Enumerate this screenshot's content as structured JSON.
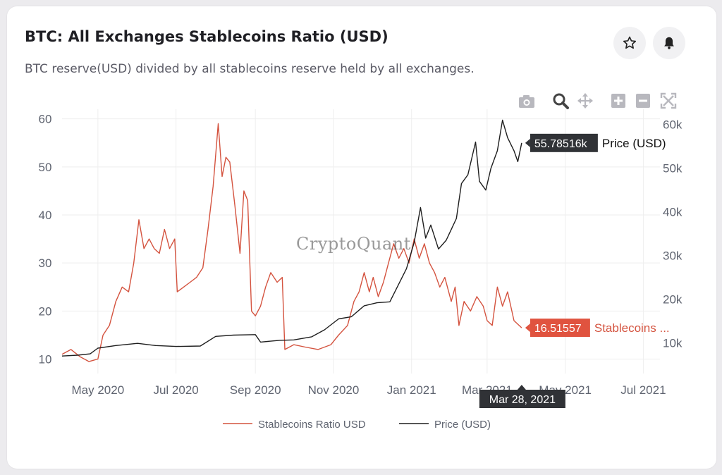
{
  "header": {
    "title": "BTC: All Exchanges Stablecoins Ratio (USD)",
    "subtitle": "BTC reserve(USD) divided by all stablecoins reserve held by all exchanges."
  },
  "actions": {
    "star_icon": "star-icon",
    "bell_icon": "bell-icon"
  },
  "toolbar": {
    "icons": [
      "camera-icon",
      "zoom-icon",
      "pan-icon",
      "zoom-in-icon",
      "zoom-out-icon",
      "autoscale-icon"
    ]
  },
  "watermark": "CryptoQuant",
  "colors": {
    "ratio": "#d4533f",
    "price": "#1e1e1e",
    "ratio_tip": "#e0533f",
    "price_tip": "#303236",
    "grid": "#eeeeee"
  },
  "chart_data": {
    "type": "line",
    "x_ticks": [
      "May 2020",
      "Jul 2020",
      "Sep 2020",
      "Nov 2020",
      "Jan 2021",
      "Mar 2021",
      "May 2021",
      "Jul 2021"
    ],
    "x_tick_dates": [
      "2020-05-01",
      "2020-07-01",
      "2020-09-01",
      "2020-11-01",
      "2021-01-01",
      "2021-03-01",
      "2021-05-01",
      "2021-07-01"
    ],
    "xlim": [
      "2020-04-03",
      "2021-07-14"
    ],
    "y_left": {
      "ticks": [
        "10",
        "20",
        "30",
        "40",
        "50",
        "60"
      ],
      "tick_values": [
        10,
        20,
        30,
        40,
        50,
        60
      ],
      "range": [
        7,
        62
      ]
    },
    "y_right": {
      "ticks": [
        "10k",
        "20k",
        "30k",
        "40k",
        "50k",
        "60k"
      ],
      "tick_values": [
        10000,
        20000,
        30000,
        40000,
        50000,
        60000
      ],
      "range": [
        3000,
        63500
      ]
    },
    "legend": [
      "Stablecoins Ratio USD",
      "Price (USD)"
    ],
    "legend_position": "bottom-center",
    "grid": true,
    "series": [
      {
        "name": "Stablecoins Ratio USD",
        "axis": "left",
        "points": [
          [
            "2020-04-03",
            11
          ],
          [
            "2020-04-10",
            12
          ],
          [
            "2020-04-17",
            10.5
          ],
          [
            "2020-04-24",
            9.5
          ],
          [
            "2020-05-01",
            10
          ],
          [
            "2020-05-05",
            15
          ],
          [
            "2020-05-10",
            17
          ],
          [
            "2020-05-15",
            22
          ],
          [
            "2020-05-20",
            25
          ],
          [
            "2020-05-25",
            24
          ],
          [
            "2020-05-29",
            30
          ],
          [
            "2020-06-02",
            39
          ],
          [
            "2020-06-06",
            33
          ],
          [
            "2020-06-10",
            35
          ],
          [
            "2020-06-14",
            33
          ],
          [
            "2020-06-18",
            32
          ],
          [
            "2020-06-22",
            37
          ],
          [
            "2020-06-26",
            33
          ],
          [
            "2020-06-30",
            35
          ],
          [
            "2020-07-02",
            24
          ],
          [
            "2020-07-07",
            25
          ],
          [
            "2020-07-12",
            26
          ],
          [
            "2020-07-17",
            27
          ],
          [
            "2020-07-22",
            29
          ],
          [
            "2020-07-26",
            37
          ],
          [
            "2020-07-30",
            46
          ],
          [
            "2020-08-03",
            59
          ],
          [
            "2020-08-06",
            48
          ],
          [
            "2020-08-09",
            52
          ],
          [
            "2020-08-12",
            51
          ],
          [
            "2020-08-16",
            42
          ],
          [
            "2020-08-20",
            32
          ],
          [
            "2020-08-23",
            45
          ],
          [
            "2020-08-26",
            43
          ],
          [
            "2020-08-29",
            20
          ],
          [
            "2020-09-01",
            19
          ],
          [
            "2020-09-05",
            21
          ],
          [
            "2020-09-09",
            25
          ],
          [
            "2020-09-13",
            28
          ],
          [
            "2020-09-18",
            26
          ],
          [
            "2020-09-22",
            27
          ],
          [
            "2020-09-24",
            12
          ],
          [
            "2020-10-01",
            13
          ],
          [
            "2020-10-10",
            12.5
          ],
          [
            "2020-10-20",
            12
          ],
          [
            "2020-10-30",
            13
          ],
          [
            "2020-11-05",
            15
          ],
          [
            "2020-11-12",
            17
          ],
          [
            "2020-11-17",
            22
          ],
          [
            "2020-11-21",
            24
          ],
          [
            "2020-11-25",
            28
          ],
          [
            "2020-11-29",
            24
          ],
          [
            "2020-12-02",
            27
          ],
          [
            "2020-12-06",
            23
          ],
          [
            "2020-12-10",
            26
          ],
          [
            "2020-12-14",
            30
          ],
          [
            "2020-12-18",
            34
          ],
          [
            "2020-12-22",
            31
          ],
          [
            "2020-12-26",
            33
          ],
          [
            "2020-12-30",
            30
          ],
          [
            "2021-01-03",
            35
          ],
          [
            "2021-01-07",
            31
          ],
          [
            "2021-01-11",
            34
          ],
          [
            "2021-01-15",
            30
          ],
          [
            "2021-01-19",
            28
          ],
          [
            "2021-01-23",
            25
          ],
          [
            "2021-01-27",
            27
          ],
          [
            "2021-02-01",
            22
          ],
          [
            "2021-02-04",
            25
          ],
          [
            "2021-02-07",
            17
          ],
          [
            "2021-02-11",
            22
          ],
          [
            "2021-02-16",
            20
          ],
          [
            "2021-02-21",
            23
          ],
          [
            "2021-02-26",
            21
          ],
          [
            "2021-03-01",
            18
          ],
          [
            "2021-03-05",
            17
          ],
          [
            "2021-03-09",
            25
          ],
          [
            "2021-03-13",
            21
          ],
          [
            "2021-03-17",
            24
          ],
          [
            "2021-03-22",
            18
          ],
          [
            "2021-03-28",
            16.52
          ]
        ]
      },
      {
        "name": "Price (USD)",
        "axis": "right",
        "points": [
          [
            "2020-04-03",
            7000
          ],
          [
            "2020-04-15",
            7200
          ],
          [
            "2020-04-25",
            7500
          ],
          [
            "2020-05-01",
            8800
          ],
          [
            "2020-05-15",
            9400
          ],
          [
            "2020-06-01",
            9900
          ],
          [
            "2020-06-15",
            9400
          ],
          [
            "2020-07-01",
            9200
          ],
          [
            "2020-07-20",
            9300
          ],
          [
            "2020-08-01",
            11500
          ],
          [
            "2020-08-15",
            11800
          ],
          [
            "2020-09-01",
            11900
          ],
          [
            "2020-09-05",
            10200
          ],
          [
            "2020-09-20",
            10600
          ],
          [
            "2020-10-01",
            10700
          ],
          [
            "2020-10-15",
            11400
          ],
          [
            "2020-10-25",
            13000
          ],
          [
            "2020-11-05",
            15500
          ],
          [
            "2020-11-15",
            16000
          ],
          [
            "2020-11-25",
            18500
          ],
          [
            "2020-12-05",
            19200
          ],
          [
            "2020-12-15",
            19400
          ],
          [
            "2020-12-22",
            23500
          ],
          [
            "2020-12-28",
            27000
          ],
          [
            "2021-01-03",
            33000
          ],
          [
            "2021-01-08",
            41000
          ],
          [
            "2021-01-12",
            34000
          ],
          [
            "2021-01-16",
            37000
          ],
          [
            "2021-01-22",
            31500
          ],
          [
            "2021-01-28",
            33500
          ],
          [
            "2021-02-05",
            38500
          ],
          [
            "2021-02-09",
            46500
          ],
          [
            "2021-02-14",
            48500
          ],
          [
            "2021-02-20",
            56000
          ],
          [
            "2021-02-23",
            47000
          ],
          [
            "2021-02-28",
            45000
          ],
          [
            "2021-03-04",
            50000
          ],
          [
            "2021-03-09",
            54000
          ],
          [
            "2021-03-13",
            61000
          ],
          [
            "2021-03-17",
            57000
          ],
          [
            "2021-03-22",
            54000
          ],
          [
            "2021-03-25",
            51500
          ],
          [
            "2021-03-28",
            55785
          ]
        ]
      }
    ],
    "tooltips": {
      "date": "Mar 28, 2021",
      "price_value": "55.78516k",
      "price_label": "Price (USD)",
      "ratio_value": "16.51557",
      "ratio_label": "Stablecoins ..."
    }
  }
}
